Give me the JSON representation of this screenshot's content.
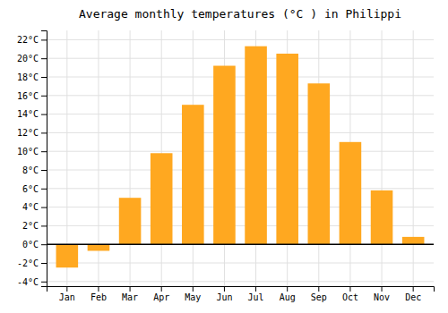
{
  "chart_data": {
    "type": "bar",
    "title": "Average monthly temperatures (°C ) in Philippi",
    "categories": [
      "Jan",
      "Feb",
      "Mar",
      "Apr",
      "May",
      "Jun",
      "Jul",
      "Aug",
      "Sep",
      "Oct",
      "Nov",
      "Dec"
    ],
    "values": [
      -2.5,
      -0.7,
      5.0,
      9.8,
      15.0,
      19.2,
      21.3,
      20.5,
      17.3,
      11.0,
      5.8,
      0.8
    ],
    "color": "#FFA820",
    "ylim": [
      -4.5,
      23
    ],
    "yticks": [
      {
        "value": -4,
        "label": "-4°C"
      },
      {
        "value": -2,
        "label": "-2°C"
      },
      {
        "value": 0,
        "label": "0°C"
      },
      {
        "value": 2,
        "label": "2°C"
      },
      {
        "value": 4,
        "label": "4°C"
      },
      {
        "value": 6,
        "label": "6°C"
      },
      {
        "value": 8,
        "label": "8°C"
      },
      {
        "value": 10,
        "label": "10°C"
      },
      {
        "value": 12,
        "label": "12°C"
      },
      {
        "value": 14,
        "label": "14°C"
      },
      {
        "value": 16,
        "label": "16°C"
      },
      {
        "value": 18,
        "label": "18°C"
      },
      {
        "value": 20,
        "label": "20°C"
      },
      {
        "value": 22,
        "label": "22°C"
      }
    ],
    "grid": true
  }
}
